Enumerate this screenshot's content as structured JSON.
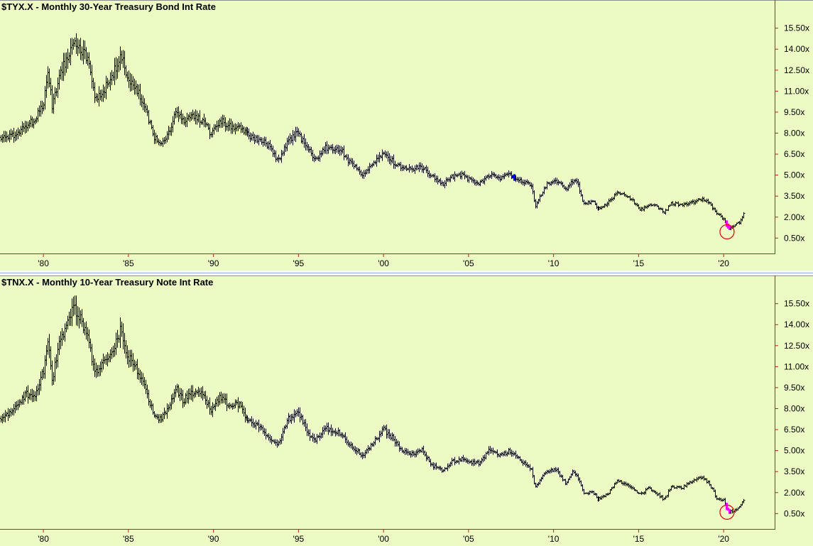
{
  "chart_data": [
    {
      "type": "bar",
      "subtype": "ohlc-monthly",
      "title": "$TYX.X - Monthly  30-Year Treasury Bond Int Rate",
      "y_tick_labels": [
        "15.50x",
        "14.00x",
        "12.50x",
        "11.00x",
        "9.50x",
        "8.00x",
        "6.50x",
        "5.00x",
        "3.50x",
        "2.00x",
        "0.50x"
      ],
      "y_ticks": [
        15.5,
        14.0,
        12.5,
        11.0,
        9.5,
        8.0,
        6.5,
        5.0,
        3.5,
        2.0,
        0.5
      ],
      "ylim": [
        -0.6,
        16.6
      ],
      "x_tick_labels": [
        "'80",
        "'85",
        "'90",
        "'95",
        "'00",
        "'05",
        "'10",
        "'15",
        "'20"
      ],
      "x_ticks": [
        1980,
        1985,
        1990,
        1995,
        2000,
        2005,
        2010,
        2015,
        2020
      ],
      "xlim": [
        1977.45,
        2023.0
      ],
      "anchors": [
        [
          1977.5,
          7.7
        ],
        [
          1978.0,
          7.7
        ],
        [
          1978.5,
          8.0
        ],
        [
          1979.0,
          8.6
        ],
        [
          1979.5,
          8.9
        ],
        [
          1980.0,
          10.2
        ],
        [
          1980.25,
          12.5
        ],
        [
          1980.5,
          10.0
        ],
        [
          1980.9,
          12.0
        ],
        [
          1981.8,
          14.8
        ],
        [
          1982.3,
          13.8
        ],
        [
          1982.6,
          13.2
        ],
        [
          1983.0,
          10.5
        ],
        [
          1983.5,
          11.0
        ],
        [
          1984.0,
          11.9
        ],
        [
          1984.5,
          13.6
        ],
        [
          1985.0,
          11.8
        ],
        [
          1985.6,
          10.8
        ],
        [
          1986.0,
          9.6
        ],
        [
          1986.5,
          7.6
        ],
        [
          1986.9,
          7.4
        ],
        [
          1987.3,
          7.9
        ],
        [
          1987.8,
          9.5
        ],
        [
          1988.2,
          8.9
        ],
        [
          1988.7,
          9.2
        ],
        [
          1989.2,
          9.0
        ],
        [
          1989.8,
          8.0
        ],
        [
          1990.4,
          8.9
        ],
        [
          1990.8,
          8.5
        ],
        [
          1991.5,
          8.3
        ],
        [
          1992.0,
          7.9
        ],
        [
          1992.8,
          7.5
        ],
        [
          1993.4,
          6.9
        ],
        [
          1993.8,
          6.0
        ],
        [
          1994.4,
          7.4
        ],
        [
          1994.9,
          8.0
        ],
        [
          1995.6,
          6.8
        ],
        [
          1996.0,
          6.1
        ],
        [
          1996.6,
          7.0
        ],
        [
          1997.0,
          6.8
        ],
        [
          1997.5,
          6.8
        ],
        [
          1998.0,
          5.9
        ],
        [
          1998.8,
          5.0
        ],
        [
          1999.4,
          5.9
        ],
        [
          2000.0,
          6.6
        ],
        [
          2000.6,
          5.9
        ],
        [
          2001.0,
          5.6
        ],
        [
          2001.6,
          5.4
        ],
        [
          2002.2,
          5.6
        ],
        [
          2002.8,
          5.0
        ],
        [
          2003.5,
          4.4
        ],
        [
          2004.0,
          4.9
        ],
        [
          2004.6,
          5.0
        ],
        [
          2005.0,
          4.7
        ],
        [
          2005.6,
          4.4
        ],
        [
          2006.2,
          5.0
        ],
        [
          2006.8,
          4.8
        ],
        [
          2007.4,
          5.0
        ],
        [
          2007.8,
          4.7
        ],
        [
          2008.4,
          4.5
        ],
        [
          2008.7,
          4.3
        ],
        [
          2008.9,
          2.7
        ],
        [
          2009.2,
          3.5
        ],
        [
          2009.6,
          4.4
        ],
        [
          2010.1,
          4.6
        ],
        [
          2010.7,
          4.0
        ],
        [
          2011.1,
          4.6
        ],
        [
          2011.4,
          4.4
        ],
        [
          2011.7,
          3.0
        ],
        [
          2012.3,
          3.1
        ],
        [
          2012.6,
          2.6
        ],
        [
          2013.2,
          3.0
        ],
        [
          2013.7,
          3.7
        ],
        [
          2014.2,
          3.6
        ],
        [
          2014.7,
          3.1
        ],
        [
          2015.1,
          2.5
        ],
        [
          2015.6,
          2.9
        ],
        [
          2016.0,
          2.8
        ],
        [
          2016.5,
          2.3
        ],
        [
          2016.9,
          3.0
        ],
        [
          2017.5,
          2.9
        ],
        [
          2018.0,
          3.0
        ],
        [
          2018.8,
          3.3
        ],
        [
          2019.2,
          2.9
        ],
        [
          2019.6,
          2.2
        ],
        [
          2020.0,
          1.9
        ],
        [
          2020.25,
          1.2
        ],
        [
          2020.55,
          1.4
        ],
        [
          2020.9,
          1.6
        ],
        [
          2021.2,
          2.3
        ]
      ],
      "highlights": [
        {
          "x_start": 2007.5,
          "x_end": 2007.7,
          "color": "#0000ff"
        },
        {
          "x_start": 2020.1,
          "x_end": 2020.4,
          "color": "#ff00ff"
        }
      ],
      "annotation_circle": {
        "x": 2020.2,
        "y": 0.95,
        "color": "#e00000"
      }
    },
    {
      "type": "bar",
      "subtype": "ohlc-monthly",
      "title": "$TNX.X - Monthly  10-Year Treasury Note Int Rate",
      "y_tick_labels": [
        "15.50x",
        "14.00x",
        "12.50x",
        "11.00x",
        "9.50x",
        "8.00x",
        "6.50x",
        "5.00x",
        "3.50x",
        "2.00x",
        "0.50x"
      ],
      "y_ticks": [
        15.5,
        14.0,
        12.5,
        11.0,
        9.5,
        8.0,
        6.5,
        5.0,
        3.5,
        2.0,
        0.5
      ],
      "ylim": [
        -0.6,
        16.6
      ],
      "x_tick_labels": [
        "'80",
        "'85",
        "'90",
        "'95",
        "'00",
        "'05",
        "'10",
        "'15",
        "'20"
      ],
      "x_ticks": [
        1980,
        1985,
        1990,
        1995,
        2000,
        2005,
        2010,
        2015,
        2020
      ],
      "xlim": [
        1977.45,
        2023.0
      ],
      "anchors": [
        [
          1977.5,
          7.3
        ],
        [
          1978.0,
          7.8
        ],
        [
          1978.5,
          8.4
        ],
        [
          1979.0,
          9.0
        ],
        [
          1979.5,
          9.0
        ],
        [
          1980.0,
          10.8
        ],
        [
          1980.25,
          12.8
        ],
        [
          1980.5,
          10.0
        ],
        [
          1980.9,
          12.5
        ],
        [
          1981.8,
          15.3
        ],
        [
          1982.3,
          14.0
        ],
        [
          1982.6,
          13.2
        ],
        [
          1983.0,
          10.5
        ],
        [
          1983.5,
          11.2
        ],
        [
          1984.0,
          11.9
        ],
        [
          1984.5,
          13.6
        ],
        [
          1985.0,
          11.6
        ],
        [
          1985.6,
          10.5
        ],
        [
          1986.0,
          9.4
        ],
        [
          1986.5,
          7.4
        ],
        [
          1986.9,
          7.2
        ],
        [
          1987.3,
          8.0
        ],
        [
          1987.8,
          9.4
        ],
        [
          1988.2,
          8.6
        ],
        [
          1988.7,
          9.1
        ],
        [
          1989.2,
          9.2
        ],
        [
          1989.8,
          7.9
        ],
        [
          1990.4,
          8.8
        ],
        [
          1990.8,
          8.3
        ],
        [
          1991.5,
          8.2
        ],
        [
          1992.0,
          7.2
        ],
        [
          1992.8,
          6.6
        ],
        [
          1993.4,
          5.8
        ],
        [
          1993.8,
          5.4
        ],
        [
          1994.4,
          7.2
        ],
        [
          1994.9,
          7.9
        ],
        [
          1995.6,
          6.2
        ],
        [
          1996.0,
          5.7
        ],
        [
          1996.6,
          6.7
        ],
        [
          1997.0,
          6.4
        ],
        [
          1997.5,
          6.2
        ],
        [
          1998.0,
          5.5
        ],
        [
          1998.8,
          4.6
        ],
        [
          1999.4,
          5.6
        ],
        [
          2000.0,
          6.5
        ],
        [
          2000.6,
          5.8
        ],
        [
          2001.0,
          5.0
        ],
        [
          2001.6,
          4.7
        ],
        [
          2002.2,
          5.1
        ],
        [
          2002.8,
          4.0
        ],
        [
          2003.5,
          3.5
        ],
        [
          2004.0,
          4.2
        ],
        [
          2004.6,
          4.4
        ],
        [
          2005.0,
          4.2
        ],
        [
          2005.6,
          4.1
        ],
        [
          2006.2,
          5.0
        ],
        [
          2006.8,
          4.6
        ],
        [
          2007.4,
          5.0
        ],
        [
          2007.8,
          4.5
        ],
        [
          2008.4,
          3.9
        ],
        [
          2008.7,
          3.6
        ],
        [
          2008.9,
          2.3
        ],
        [
          2009.2,
          3.0
        ],
        [
          2009.6,
          3.5
        ],
        [
          2010.1,
          3.7
        ],
        [
          2010.7,
          2.6
        ],
        [
          2011.1,
          3.5
        ],
        [
          2011.4,
          3.1
        ],
        [
          2011.7,
          2.0
        ],
        [
          2012.3,
          2.0
        ],
        [
          2012.6,
          1.5
        ],
        [
          2013.2,
          1.9
        ],
        [
          2013.7,
          2.8
        ],
        [
          2014.2,
          2.7
        ],
        [
          2014.7,
          2.3
        ],
        [
          2015.1,
          1.9
        ],
        [
          2015.6,
          2.3
        ],
        [
          2016.0,
          2.0
        ],
        [
          2016.5,
          1.5
        ],
        [
          2016.9,
          2.4
        ],
        [
          2017.5,
          2.3
        ],
        [
          2018.0,
          2.7
        ],
        [
          2018.8,
          3.1
        ],
        [
          2019.2,
          2.5
        ],
        [
          2019.6,
          1.6
        ],
        [
          2020.0,
          1.5
        ],
        [
          2020.25,
          0.65
        ],
        [
          2020.55,
          0.6
        ],
        [
          2020.9,
          0.9
        ],
        [
          2021.2,
          1.6
        ]
      ],
      "highlights": [
        {
          "x_start": 2020.1,
          "x_end": 2020.4,
          "color": "#ff00ff"
        }
      ],
      "annotation_circle": {
        "x": 2020.2,
        "y": 0.6,
        "color": "#e00000"
      }
    }
  ]
}
